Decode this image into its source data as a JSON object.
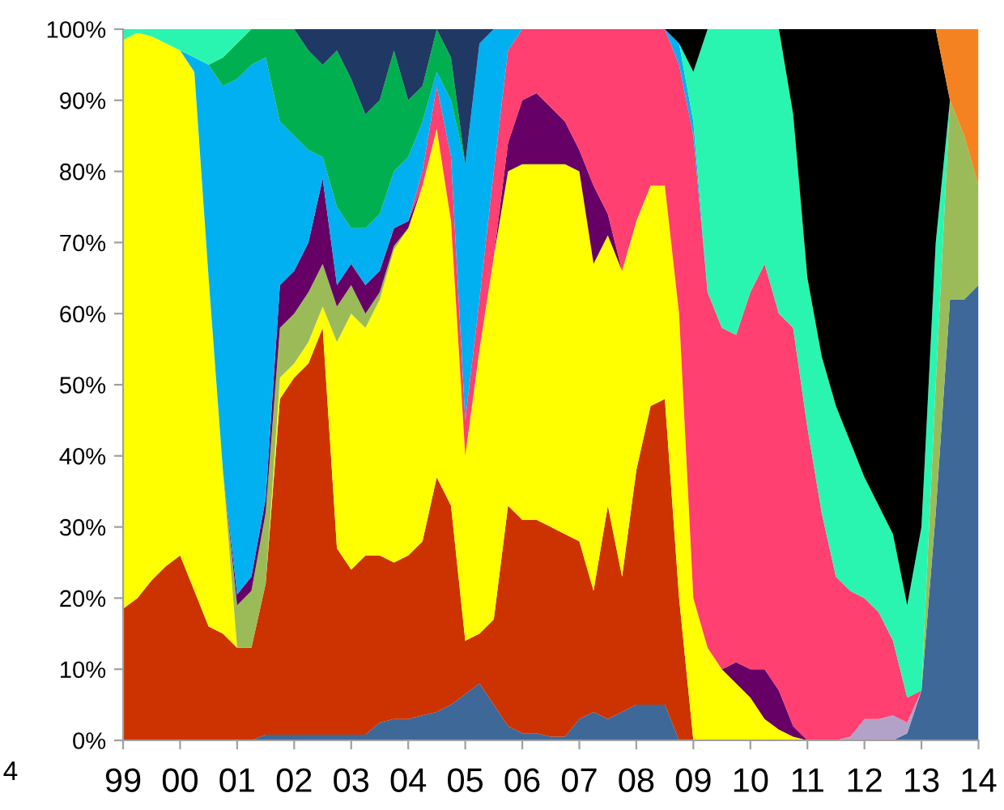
{
  "chart_data": {
    "type": "area",
    "stacked": true,
    "x": [
      1999,
      1999.25,
      1999.5,
      1999.75,
      2000,
      2000.25,
      2000.5,
      2000.75,
      2001,
      2001.25,
      2001.5,
      2001.75,
      2002,
      2002.25,
      2002.5,
      2002.75,
      2003,
      2003.25,
      2003.5,
      2003.75,
      2004,
      2004.25,
      2004.5,
      2004.75,
      2005,
      2005.25,
      2005.5,
      2005.75,
      2006,
      2006.25,
      2006.5,
      2006.75,
      2007,
      2007.25,
      2007.5,
      2007.75,
      2008,
      2008.25,
      2008.5,
      2008.75,
      2009,
      2009.25,
      2009.5,
      2009.75,
      2010,
      2010.25,
      2010.5,
      2010.75,
      2011,
      2011.25,
      2011.5,
      2011.75,
      2012,
      2012.25,
      2012.5,
      2012.75,
      2013,
      2013.25,
      2013.5,
      2013.75,
      2014
    ],
    "series": [
      {
        "color": "#3d6898",
        "values": [
          null,
          null,
          null,
          null,
          null,
          null,
          null,
          null,
          null,
          0,
          0.8,
          0.8,
          0.8,
          0.8,
          0.8,
          0.8,
          0.8,
          0.8,
          2.5,
          3,
          3,
          3.5,
          4,
          5,
          6.5,
          8,
          5,
          2,
          1,
          1,
          0.5,
          0.5,
          3,
          4,
          3,
          4,
          5,
          5,
          5,
          0,
          null,
          null,
          null,
          null,
          null,
          null,
          null,
          null,
          null,
          null,
          null,
          null,
          null,
          null,
          0,
          1,
          7,
          32,
          62,
          62,
          64
        ]
      },
      {
        "color": "#cc3300",
        "values": [
          18.5,
          20,
          22.5,
          24.5,
          26,
          21,
          16,
          15,
          13,
          13,
          21.2,
          47.2,
          50.2,
          52.2,
          57.2,
          26.2,
          23.2,
          25.2,
          23.5,
          22,
          23,
          24.5,
          33,
          28,
          7.5,
          7,
          12,
          31,
          30,
          30,
          29.5,
          28.5,
          25,
          17,
          30,
          19,
          33,
          42,
          43,
          20,
          0,
          null,
          null,
          null,
          null,
          null,
          null,
          null,
          null,
          null,
          null,
          null,
          null,
          null,
          null,
          null,
          null,
          null,
          null,
          null,
          null
        ]
      },
      {
        "color": "#b3a2c7",
        "values": [
          null,
          null,
          null,
          null,
          null,
          null,
          null,
          null,
          null,
          null,
          null,
          null,
          null,
          null,
          null,
          null,
          null,
          null,
          null,
          null,
          null,
          null,
          null,
          null,
          null,
          null,
          null,
          null,
          null,
          null,
          null,
          null,
          null,
          null,
          null,
          null,
          null,
          null,
          null,
          null,
          null,
          null,
          null,
          null,
          null,
          null,
          null,
          null,
          null,
          null,
          0,
          0.5,
          3,
          3,
          3.5,
          1.5,
          0,
          null,
          null,
          null,
          null
        ]
      },
      {
        "color": "#ffff00",
        "values": [
          80,
          79.5,
          76.5,
          73.5,
          71,
          73,
          49,
          23,
          0,
          null,
          0,
          3,
          2,
          3,
          3,
          29,
          36,
          32,
          36,
          44,
          46,
          50,
          49,
          40,
          26,
          40,
          51,
          47,
          50,
          50,
          51,
          52,
          52,
          46,
          38,
          43,
          35,
          31,
          30,
          40,
          20,
          13,
          10,
          8,
          6,
          3,
          1.5,
          0.5,
          0,
          null,
          null,
          null,
          null,
          null,
          null,
          null,
          null,
          null,
          null,
          null,
          null
        ]
      },
      {
        "color": "#9bbb59",
        "values": [
          null,
          null,
          null,
          null,
          null,
          null,
          null,
          0,
          6,
          8,
          10,
          7,
          7,
          7,
          6,
          5,
          4,
          2,
          1,
          0.5,
          0,
          null,
          null,
          null,
          null,
          null,
          null,
          null,
          null,
          null,
          null,
          null,
          null,
          null,
          null,
          null,
          null,
          null,
          null,
          null,
          null,
          null,
          null,
          null,
          null,
          null,
          null,
          null,
          null,
          null,
          null,
          null,
          null,
          null,
          null,
          null,
          0,
          18,
          28,
          23,
          14
        ]
      },
      {
        "color": "#660066",
        "values": [
          null,
          null,
          null,
          null,
          null,
          null,
          null,
          0,
          1.5,
          2,
          2,
          6,
          6,
          7,
          12,
          3,
          3,
          4,
          3,
          2.5,
          1,
          0,
          null,
          null,
          null,
          null,
          0,
          4,
          9,
          10,
          8,
          6,
          3,
          11,
          3,
          0,
          null,
          null,
          null,
          null,
          null,
          null,
          0,
          3,
          4,
          7,
          5.5,
          1.5,
          0,
          null,
          null,
          null,
          null,
          null,
          null,
          null,
          null,
          null,
          null,
          null,
          null
        ]
      },
      {
        "color": "#ff4070",
        "values": [
          null,
          null,
          null,
          null,
          null,
          null,
          null,
          null,
          null,
          null,
          null,
          null,
          null,
          null,
          null,
          null,
          null,
          null,
          null,
          null,
          0,
          2,
          6,
          9,
          5,
          7,
          12,
          13,
          10,
          9,
          11,
          13,
          17,
          22,
          26,
          34,
          27,
          22,
          22,
          35,
          65,
          50,
          48,
          46,
          53,
          57,
          53,
          56,
          44,
          32,
          23,
          20.5,
          17,
          15,
          10.5,
          3.5,
          0,
          null,
          null,
          null,
          null
        ]
      },
      {
        "color": "#00b0f0",
        "values": [
          null,
          null,
          null,
          null,
          0,
          2,
          30,
          54,
          72.5,
          72,
          62,
          23,
          19,
          13,
          3,
          11,
          5,
          8,
          8,
          8,
          9,
          7,
          2,
          8,
          36,
          36,
          20,
          3,
          0,
          null,
          null,
          null,
          null,
          null,
          null,
          null,
          null,
          null,
          0,
          3,
          2,
          0,
          null,
          null,
          null,
          null,
          null,
          null,
          null,
          null,
          null,
          null,
          null,
          null,
          null,
          null,
          null,
          null,
          null,
          null,
          null
        ]
      },
      {
        "color": "#00b050",
        "values": [
          null,
          null,
          null,
          null,
          null,
          null,
          0,
          4,
          5,
          5,
          4,
          13,
          15,
          14,
          13,
          22,
          21,
          16,
          16,
          17,
          8,
          5,
          6,
          6,
          0,
          null,
          null,
          null,
          null,
          null,
          null,
          null,
          null,
          null,
          null,
          null,
          null,
          null,
          null,
          null,
          null,
          null,
          null,
          null,
          null,
          null,
          null,
          null,
          null,
          null,
          null,
          null,
          null,
          null,
          null,
          null,
          null,
          null,
          null,
          null,
          null
        ]
      },
      {
        "color": "#1f3864",
        "values": [
          null,
          null,
          null,
          null,
          null,
          null,
          null,
          null,
          null,
          null,
          null,
          null,
          0,
          3,
          5,
          3,
          7,
          12,
          10,
          3,
          10,
          8,
          0,
          4,
          19,
          2,
          0,
          null,
          null,
          null,
          null,
          null,
          null,
          null,
          null,
          null,
          null,
          null,
          null,
          null,
          null,
          null,
          null,
          null,
          null,
          null,
          null,
          null,
          null,
          null,
          null,
          null,
          null,
          null,
          null,
          null,
          null,
          null,
          null,
          null,
          null
        ]
      },
      {
        "color": "#2af5b0",
        "values": [
          1.5,
          0.5,
          1,
          2,
          3,
          4,
          5,
          4,
          2,
          0,
          null,
          null,
          null,
          null,
          null,
          null,
          null,
          null,
          null,
          null,
          null,
          null,
          null,
          null,
          null,
          null,
          null,
          null,
          null,
          null,
          null,
          null,
          null,
          null,
          null,
          null,
          null,
          null,
          null,
          0,
          7,
          37,
          42,
          43,
          37,
          33,
          40,
          30,
          21,
          22,
          24,
          21,
          17,
          15,
          15,
          13,
          23,
          20,
          0,
          null,
          null
        ]
      },
      {
        "color": "#000000",
        "values": [
          null,
          null,
          null,
          null,
          null,
          null,
          null,
          null,
          null,
          null,
          null,
          null,
          null,
          null,
          null,
          null,
          null,
          null,
          null,
          null,
          null,
          null,
          null,
          null,
          null,
          null,
          null,
          null,
          null,
          null,
          null,
          null,
          null,
          null,
          null,
          null,
          null,
          null,
          0,
          2,
          6,
          0,
          null,
          null,
          null,
          null,
          0,
          12,
          35,
          46,
          53,
          58,
          63,
          67,
          71,
          81,
          70,
          30,
          0,
          null,
          null
        ]
      },
      {
        "color": "#f58220",
        "values": [
          null,
          null,
          null,
          null,
          null,
          null,
          null,
          null,
          null,
          null,
          null,
          null,
          null,
          null,
          null,
          null,
          null,
          null,
          null,
          null,
          null,
          null,
          null,
          null,
          null,
          null,
          null,
          null,
          null,
          null,
          null,
          null,
          null,
          null,
          null,
          null,
          null,
          null,
          null,
          null,
          null,
          null,
          null,
          null,
          null,
          null,
          null,
          null,
          null,
          null,
          null,
          null,
          null,
          null,
          null,
          null,
          null,
          0,
          10,
          15,
          22
        ]
      }
    ],
    "xlim": [
      1999,
      2014
    ],
    "xticks": [
      {
        "value": 1999,
        "label": "99"
      },
      {
        "value": 2000,
        "label": "00"
      },
      {
        "value": 2001,
        "label": "01"
      },
      {
        "value": 2002,
        "label": "02"
      },
      {
        "value": 2003,
        "label": "03"
      },
      {
        "value": 2004,
        "label": "04"
      },
      {
        "value": 2005,
        "label": "05"
      },
      {
        "value": 2006,
        "label": "06"
      },
      {
        "value": 2007,
        "label": "07"
      },
      {
        "value": 2008,
        "label": "08"
      },
      {
        "value": 2009,
        "label": "09"
      },
      {
        "value": 2010,
        "label": "10"
      },
      {
        "value": 2011,
        "label": "11"
      },
      {
        "value": 2012,
        "label": "12"
      },
      {
        "value": 2013,
        "label": "13"
      },
      {
        "value": 2014,
        "label": "14"
      }
    ],
    "ylim": [
      0,
      100
    ],
    "yticks": [
      {
        "value": 0,
        "label": "0%"
      },
      {
        "value": 10,
        "label": "10%"
      },
      {
        "value": 20,
        "label": "20%"
      },
      {
        "value": 30,
        "label": "30%"
      },
      {
        "value": 40,
        "label": "40%"
      },
      {
        "value": 50,
        "label": "50%"
      },
      {
        "value": 60,
        "label": "60%"
      },
      {
        "value": 70,
        "label": "70%"
      },
      {
        "value": 80,
        "label": "80%"
      },
      {
        "value": 90,
        "label": "90%"
      },
      {
        "value": 100,
        "label": "100%"
      }
    ],
    "grid": false,
    "annotations": [
      "4"
    ]
  }
}
